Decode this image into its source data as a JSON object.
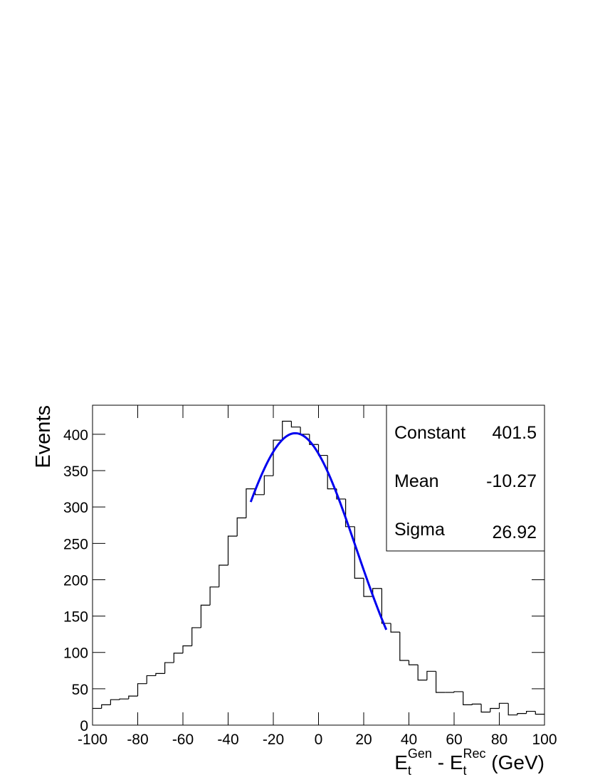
{
  "chart_data": {
    "type": "histogram",
    "ylabel": "Events",
    "xlabel": [
      {
        "text": "E"
      },
      {
        "text": "t",
        "shift": "sub"
      },
      {
        "text": "Gen",
        "shift": "sup"
      },
      {
        "text": " - E"
      },
      {
        "text": "t",
        "shift": "sub"
      },
      {
        "text": "Rec",
        "shift": "sup"
      },
      {
        "text": " (GeV)"
      }
    ],
    "bins": [
      -100,
      -96,
      -92,
      -88,
      -84,
      -80,
      -76,
      -72,
      -68,
      -64,
      -60,
      -56,
      -52,
      -48,
      -44,
      -40,
      -36,
      -32,
      -28,
      -24,
      -20,
      -16,
      -12,
      -8,
      -4,
      0,
      4,
      8,
      12,
      16,
      20,
      24,
      28,
      32,
      36,
      40,
      44,
      48,
      52,
      56,
      60,
      64,
      68,
      72,
      76,
      80,
      84,
      88,
      92,
      96,
      100
    ],
    "values": [
      23,
      28,
      35,
      36,
      40,
      57,
      68,
      71,
      86,
      99,
      109,
      134,
      165,
      190,
      220,
      260,
      285,
      325,
      317,
      343,
      392,
      418,
      410,
      400,
      386,
      371,
      325,
      311,
      273,
      202,
      177,
      188,
      140,
      128,
      89,
      83,
      62,
      74,
      45,
      45,
      46,
      28,
      29,
      18,
      23,
      30,
      14,
      16,
      19,
      15
    ],
    "color": "#000000",
    "xlim": [
      -100,
      100
    ],
    "xticks": [
      -100,
      -80,
      -60,
      -40,
      -20,
      0,
      20,
      40,
      60,
      80,
      100
    ],
    "ylim": [
      0,
      440
    ],
    "yticks": [
      0,
      50,
      100,
      150,
      200,
      250,
      300,
      350,
      400
    ],
    "fit": {
      "color": "#0000ee",
      "range": [
        -30,
        30
      ],
      "params": [
        {
          "name": "Constant",
          "value": 401.5
        },
        {
          "name": "Mean",
          "value": -10.27
        },
        {
          "name": "Sigma",
          "value": 26.92
        }
      ]
    }
  }
}
